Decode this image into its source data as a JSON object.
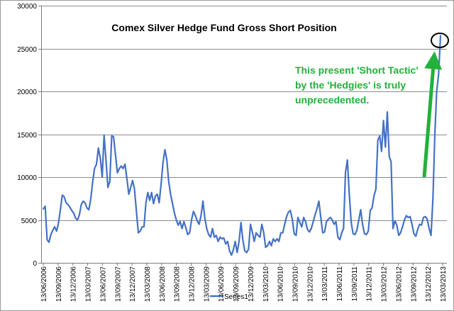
{
  "chart_data": {
    "type": "line",
    "title": "Comex Silver Hedge Fund Gross Short Position",
    "xlabel": "",
    "ylabel": "",
    "ylim": [
      0,
      30000
    ],
    "yticks": [
      "0",
      "5000",
      "10000",
      "15000",
      "20000",
      "25000",
      "30000"
    ],
    "xticks": [
      "13/06/2006",
      "13/09/2006",
      "13/12/2006",
      "13/03/2007",
      "13/06/2007",
      "13/09/2007",
      "13/12/2007",
      "13/03/2008",
      "13/06/2008",
      "13/09/2008",
      "13/12/2008",
      "13/03/2009",
      "13/06/2009",
      "13/09/2009",
      "13/12/2009",
      "13/03/2010",
      "13/06/2010",
      "13/09/2010",
      "13/12/2010",
      "13/03/2011",
      "13/06/2011",
      "13/09/2011",
      "13/12/2011",
      "13/03/2012",
      "13/06/2012",
      "13/09/2012",
      "13/12/2012",
      "13/03/2013"
    ],
    "grid": true,
    "legend": "bottom",
    "series": [
      {
        "name": "Series1",
        "color": "#4472c4",
        "values": [
          6300,
          6600,
          2700,
          2400,
          3300,
          3800,
          4200,
          3700,
          4600,
          6200,
          7900,
          7700,
          7000,
          6800,
          6500,
          6100,
          5800,
          5200,
          5000,
          5600,
          6800,
          7200,
          7000,
          6400,
          6200,
          7500,
          9500,
          11000,
          11500,
          13400,
          12200,
          10000,
          14900,
          12000,
          8800,
          9500,
          14800,
          14700,
          12600,
          10500,
          11000,
          11300,
          11000,
          11500,
          9800,
          8000,
          8800,
          9600,
          8600,
          6000,
          3500,
          3700,
          4200,
          4200,
          7000,
          8200,
          7300,
          8200,
          6900,
          7800,
          8000,
          7000,
          9200,
          11700,
          13200,
          12000,
          9500,
          8000,
          6900,
          5800,
          5000,
          4400,
          4800,
          4000,
          4800,
          4100,
          3300,
          3500,
          5000,
          6000,
          5500,
          4900,
          4500,
          5500,
          7200,
          5200,
          4000,
          3300,
          3000,
          4000,
          3000,
          3200,
          2500,
          3000,
          2800,
          2900,
          2200,
          2500,
          1400,
          900,
          1500,
          2500,
          1200,
          2500,
          4700,
          2700,
          1400,
          1200,
          1600,
          4500,
          3600,
          2500,
          3500,
          3200,
          3000,
          4500,
          3500,
          1800,
          2000,
          2500,
          2000,
          2800,
          2500,
          2800,
          2500,
          3500,
          3500,
          4500,
          5400,
          5900,
          6100,
          5100,
          3400,
          3200,
          5300,
          4700,
          4200,
          5300,
          4800,
          3900,
          3600,
          4000,
          4800,
          5600,
          6300,
          7200,
          5300,
          3500,
          3600,
          4800,
          5100,
          5300,
          5000,
          4500,
          4800,
          3000,
          2700,
          3500,
          4000,
          10500,
          12000,
          8000,
          4700,
          3400,
          3300,
          3800,
          5000,
          6200,
          4500,
          3400,
          3300,
          3700,
          6100,
          6400,
          7800,
          8600,
          14300,
          14800,
          13000,
          16600,
          13500,
          17600,
          12400,
          11800,
          4000,
          4900,
          4400,
          3200,
          3500,
          4200,
          5000,
          5500,
          5300,
          5400,
          4500,
          3400,
          3100,
          3900,
          4500,
          4400,
          5300,
          5400,
          5100,
          4000,
          3200,
          7500,
          15000,
          20000,
          22000,
          26500
        ]
      }
    ],
    "annotations": [
      {
        "type": "text",
        "lines": [
          "This present 'Short Tactic'",
          "by the 'Hedgies' is truly",
          "unprecedented."
        ],
        "color": "#22b13a"
      },
      {
        "type": "arrow",
        "color": "#22b13a"
      },
      {
        "type": "ellipse",
        "color": "#000000"
      }
    ]
  }
}
